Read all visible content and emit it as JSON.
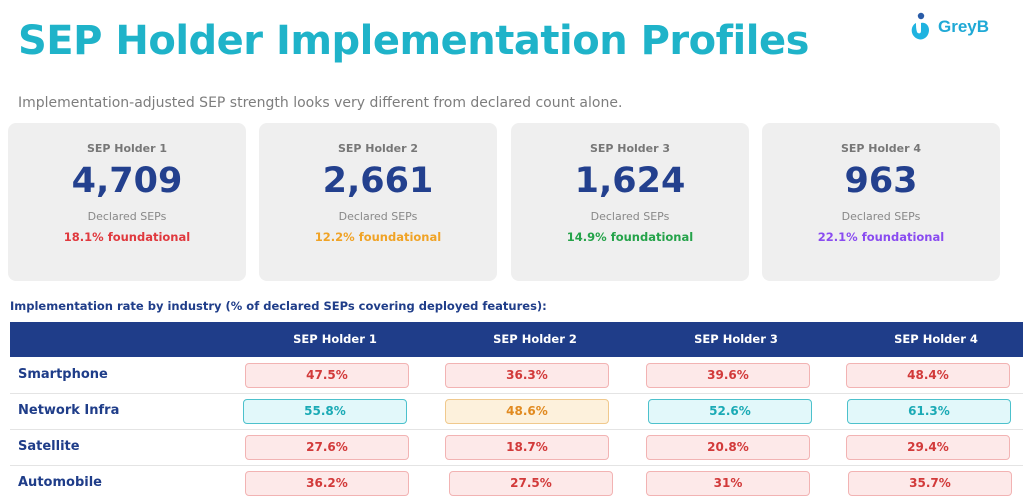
{
  "header": {
    "title": "SEP Holder Implementation Profiles",
    "subtitle": "Implementation-adjusted SEP strength looks very different from declared count alone.",
    "logo_text": "GreyB"
  },
  "cards": [
    {
      "name": "SEP Holder 1",
      "value": "4,709",
      "label": "Declared SEPs",
      "foundational": "18.1% foundational",
      "color": "#e0393e"
    },
    {
      "name": "SEP Holder 2",
      "value": "2,661",
      "label": "Declared SEPs",
      "foundational": "12.2% foundational",
      "color": "#f0a326"
    },
    {
      "name": "SEP Holder 3",
      "value": "1,624",
      "label": "Declared SEPs",
      "foundational": "14.9% foundational",
      "color": "#25a34a"
    },
    {
      "name": "SEP Holder 4",
      "value": "963",
      "label": "Declared SEPs",
      "foundational": "22.1% foundational",
      "color": "#8a4cf0"
    }
  ],
  "table": {
    "title": "Implementation rate by industry (% of declared SEPs covering deployed features):",
    "columns": [
      "SEP Holder 1",
      "SEP Holder 2",
      "SEP Holder 3",
      "SEP Holder 4"
    ],
    "rows": [
      {
        "label": "Smartphone",
        "cells": [
          {
            "value": "47.5%",
            "status": "red"
          },
          {
            "value": "36.3%",
            "status": "red"
          },
          {
            "value": "39.6%",
            "status": "red"
          },
          {
            "value": "48.4%",
            "status": "red"
          }
        ]
      },
      {
        "label": "Network Infra",
        "cells": [
          {
            "value": "55.8%",
            "status": "teal"
          },
          {
            "value": "48.6%",
            "status": "orange"
          },
          {
            "value": "52.6%",
            "status": "teal"
          },
          {
            "value": "61.3%",
            "status": "teal"
          }
        ]
      },
      {
        "label": "Satellite",
        "cells": [
          {
            "value": "27.6%",
            "status": "red"
          },
          {
            "value": "18.7%",
            "status": "red"
          },
          {
            "value": "20.8%",
            "status": "red"
          },
          {
            "value": "29.4%",
            "status": "red"
          }
        ]
      },
      {
        "label": "Automobile",
        "cells": [
          {
            "value": "36.2%",
            "status": "red"
          },
          {
            "value": "27.5%",
            "status": "red"
          },
          {
            "value": "31%",
            "status": "red"
          },
          {
            "value": "35.7%",
            "status": "red"
          }
        ]
      }
    ]
  }
}
